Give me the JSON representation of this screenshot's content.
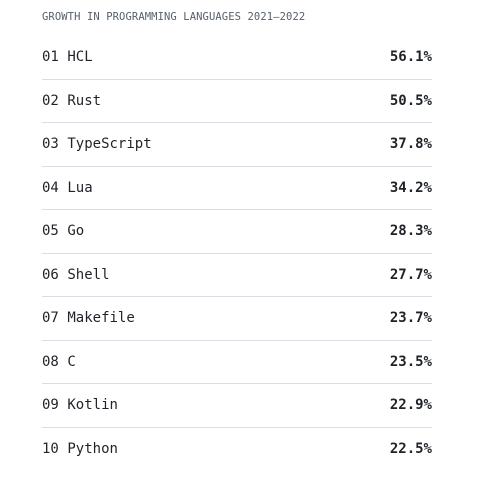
{
  "title": "GROWTH IN PROGRAMMING LANGUAGES 2021–2022",
  "items": [
    {
      "rank": "01",
      "name": "HCL",
      "value": "56.1%"
    },
    {
      "rank": "02",
      "name": "Rust",
      "value": "50.5%"
    },
    {
      "rank": "03",
      "name": "TypeScript",
      "value": "37.8%"
    },
    {
      "rank": "04",
      "name": "Lua",
      "value": "34.2%"
    },
    {
      "rank": "05",
      "name": "Go",
      "value": "28.3%"
    },
    {
      "rank": "06",
      "name": "Shell",
      "value": "27.7%"
    },
    {
      "rank": "07",
      "name": "Makefile",
      "value": "23.7%"
    },
    {
      "rank": "08",
      "name": "C",
      "value": "23.5%"
    },
    {
      "rank": "09",
      "name": "Kotlin",
      "value": "22.9%"
    },
    {
      "rank": "10",
      "name": "Python",
      "value": "22.5%"
    }
  ]
}
